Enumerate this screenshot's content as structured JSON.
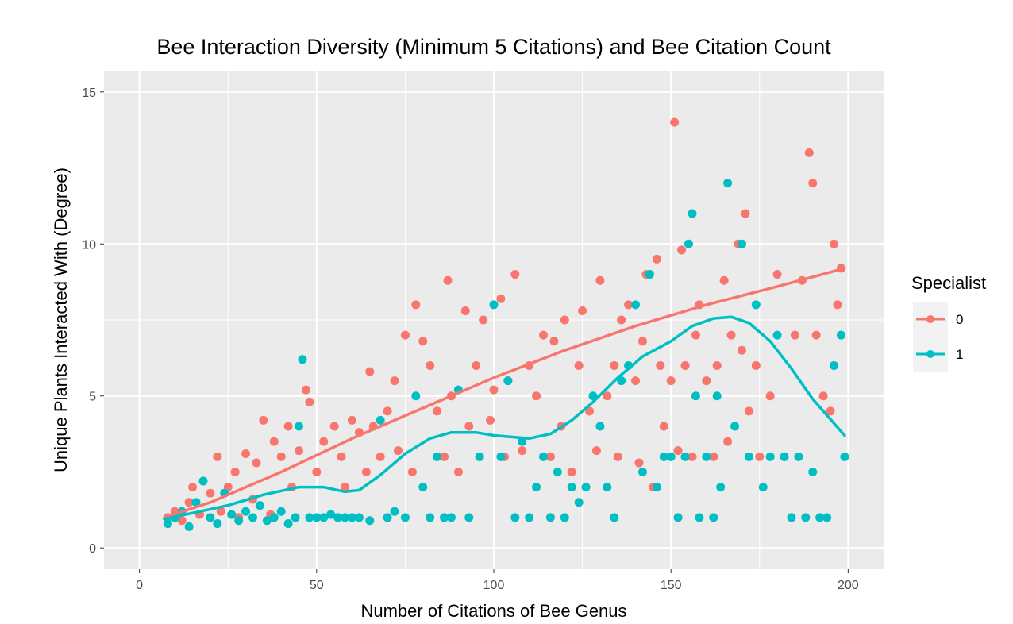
{
  "chart_data": {
    "type": "scatter",
    "title": "Bee Interaction Diversity (Minimum 5 Citations) and Bee Citation Count",
    "xlabel": "Number of Citations of Bee Genus",
    "ylabel": "Unique Plants Interacted With (Degree)",
    "xlim": [
      -10,
      210
    ],
    "ylim": [
      -0.7,
      15.7
    ],
    "x_ticks": [
      0,
      50,
      100,
      150,
      200
    ],
    "y_ticks": [
      0,
      5,
      10,
      15
    ],
    "x_tick_labels": [
      "0",
      "50",
      "100",
      "150",
      "200"
    ],
    "y_tick_labels": [
      "0",
      "5",
      "10",
      "15"
    ],
    "grid": true,
    "legend": {
      "title": "Specialist",
      "position": "right",
      "entries": [
        "0",
        "1"
      ]
    },
    "series": [
      {
        "name": "0",
        "color": "#f8766d",
        "points": [
          [
            8,
            1
          ],
          [
            10,
            1.2
          ],
          [
            12,
            0.9
          ],
          [
            14,
            1.5
          ],
          [
            15,
            2
          ],
          [
            17,
            1.1
          ],
          [
            18,
            2.2
          ],
          [
            20,
            1.8
          ],
          [
            22,
            3
          ],
          [
            23,
            1.2
          ],
          [
            25,
            2
          ],
          [
            27,
            2.5
          ],
          [
            28,
            1
          ],
          [
            30,
            3.1
          ],
          [
            32,
            1.6
          ],
          [
            33,
            2.8
          ],
          [
            35,
            4.2
          ],
          [
            37,
            1.1
          ],
          [
            38,
            3.5
          ],
          [
            40,
            3
          ],
          [
            42,
            4
          ],
          [
            43,
            2
          ],
          [
            45,
            3.2
          ],
          [
            47,
            5.2
          ],
          [
            48,
            4.8
          ],
          [
            50,
            2.5
          ],
          [
            52,
            3.5
          ],
          [
            55,
            4
          ],
          [
            57,
            3
          ],
          [
            58,
            2
          ],
          [
            60,
            4.2
          ],
          [
            62,
            3.8
          ],
          [
            64,
            2.5
          ],
          [
            65,
            5.8
          ],
          [
            66,
            4
          ],
          [
            68,
            3
          ],
          [
            70,
            4.5
          ],
          [
            72,
            5.5
          ],
          [
            73,
            3.2
          ],
          [
            75,
            7
          ],
          [
            77,
            2.5
          ],
          [
            78,
            8
          ],
          [
            80,
            6.8
          ],
          [
            82,
            6
          ],
          [
            84,
            4.5
          ],
          [
            86,
            3
          ],
          [
            87,
            8.8
          ],
          [
            88,
            5
          ],
          [
            90,
            2.5
          ],
          [
            92,
            7.8
          ],
          [
            93,
            4
          ],
          [
            95,
            6
          ],
          [
            96,
            3
          ],
          [
            97,
            7.5
          ],
          [
            99,
            4.2
          ],
          [
            100,
            5.2
          ],
          [
            102,
            8.2
          ],
          [
            103,
            3
          ],
          [
            104,
            5.5
          ],
          [
            106,
            9
          ],
          [
            108,
            3.2
          ],
          [
            110,
            6
          ],
          [
            112,
            5
          ],
          [
            114,
            7
          ],
          [
            116,
            3
          ],
          [
            117,
            6.8
          ],
          [
            119,
            4
          ],
          [
            120,
            7.5
          ],
          [
            122,
            2.5
          ],
          [
            124,
            6
          ],
          [
            125,
            7.8
          ],
          [
            127,
            4.5
          ],
          [
            129,
            3.2
          ],
          [
            130,
            8.8
          ],
          [
            132,
            5
          ],
          [
            134,
            6
          ],
          [
            135,
            3
          ],
          [
            136,
            7.5
          ],
          [
            138,
            8
          ],
          [
            140,
            5.5
          ],
          [
            141,
            2.8
          ],
          [
            142,
            6.8
          ],
          [
            143,
            9
          ],
          [
            145,
            2
          ],
          [
            146,
            9.5
          ],
          [
            147,
            6
          ],
          [
            148,
            4
          ],
          [
            150,
            5.5
          ],
          [
            151,
            14
          ],
          [
            152,
            3.2
          ],
          [
            153,
            9.8
          ],
          [
            154,
            6
          ],
          [
            156,
            3
          ],
          [
            157,
            7
          ],
          [
            158,
            8
          ],
          [
            160,
            5.5
          ],
          [
            162,
            3
          ],
          [
            163,
            6
          ],
          [
            165,
            8.8
          ],
          [
            166,
            3.5
          ],
          [
            167,
            7
          ],
          [
            169,
            10
          ],
          [
            170,
            6.5
          ],
          [
            171,
            11
          ],
          [
            172,
            4.5
          ],
          [
            174,
            6
          ],
          [
            175,
            3
          ],
          [
            178,
            5
          ],
          [
            180,
            9
          ],
          [
            182,
            3
          ],
          [
            185,
            7
          ],
          [
            187,
            8.8
          ],
          [
            189,
            13
          ],
          [
            190,
            12
          ],
          [
            191,
            7
          ],
          [
            193,
            5
          ],
          [
            195,
            4.5
          ],
          [
            196,
            10
          ],
          [
            197,
            8
          ],
          [
            198,
            9.2
          ]
        ]
      },
      {
        "name": "1",
        "color": "#00bfc4",
        "points": [
          [
            8,
            0.8
          ],
          [
            10,
            1
          ],
          [
            12,
            1.2
          ],
          [
            14,
            0.7
          ],
          [
            16,
            1.5
          ],
          [
            18,
            2.2
          ],
          [
            20,
            1
          ],
          [
            22,
            0.8
          ],
          [
            24,
            1.8
          ],
          [
            26,
            1.1
          ],
          [
            28,
            0.9
          ],
          [
            30,
            1.2
          ],
          [
            32,
            1
          ],
          [
            34,
            1.4
          ],
          [
            36,
            0.9
          ],
          [
            38,
            1
          ],
          [
            40,
            1.2
          ],
          [
            42,
            0.8
          ],
          [
            44,
            1
          ],
          [
            45,
            4
          ],
          [
            46,
            6.2
          ],
          [
            48,
            1
          ],
          [
            50,
            1
          ],
          [
            52,
            1
          ],
          [
            54,
            1.1
          ],
          [
            56,
            1
          ],
          [
            58,
            1
          ],
          [
            60,
            1
          ],
          [
            62,
            1
          ],
          [
            65,
            0.9
          ],
          [
            68,
            4.2
          ],
          [
            70,
            1
          ],
          [
            72,
            1.2
          ],
          [
            75,
            1
          ],
          [
            78,
            5
          ],
          [
            80,
            2
          ],
          [
            82,
            1
          ],
          [
            84,
            3
          ],
          [
            86,
            1
          ],
          [
            88,
            1
          ],
          [
            90,
            5.2
          ],
          [
            93,
            1
          ],
          [
            96,
            3
          ],
          [
            100,
            8
          ],
          [
            102,
            3
          ],
          [
            104,
            5.5
          ],
          [
            106,
            1
          ],
          [
            108,
            3.5
          ],
          [
            110,
            1
          ],
          [
            112,
            2
          ],
          [
            114,
            3
          ],
          [
            116,
            1
          ],
          [
            118,
            2.5
          ],
          [
            120,
            1
          ],
          [
            122,
            2
          ],
          [
            124,
            1.5
          ],
          [
            126,
            2
          ],
          [
            128,
            5
          ],
          [
            130,
            4
          ],
          [
            132,
            2
          ],
          [
            134,
            1
          ],
          [
            136,
            5.5
          ],
          [
            138,
            6
          ],
          [
            140,
            8
          ],
          [
            142,
            2.5
          ],
          [
            144,
            9
          ],
          [
            146,
            2
          ],
          [
            148,
            3
          ],
          [
            150,
            3
          ],
          [
            152,
            1
          ],
          [
            154,
            3
          ],
          [
            155,
            10
          ],
          [
            156,
            11
          ],
          [
            157,
            5
          ],
          [
            158,
            1
          ],
          [
            160,
            3
          ],
          [
            162,
            1
          ],
          [
            163,
            5
          ],
          [
            164,
            2
          ],
          [
            166,
            12
          ],
          [
            168,
            4
          ],
          [
            170,
            10
          ],
          [
            172,
            3
          ],
          [
            174,
            8
          ],
          [
            176,
            2
          ],
          [
            178,
            3
          ],
          [
            180,
            7
          ],
          [
            182,
            3
          ],
          [
            184,
            1
          ],
          [
            186,
            3
          ],
          [
            188,
            1
          ],
          [
            190,
            2.5
          ],
          [
            192,
            1
          ],
          [
            194,
            1
          ],
          [
            196,
            6
          ],
          [
            198,
            7
          ],
          [
            199,
            3
          ]
        ]
      }
    ],
    "trend_lines": [
      {
        "series": "0",
        "color": "#f8766d",
        "points": [
          [
            7,
            1
          ],
          [
            20,
            1.5
          ],
          [
            40,
            2.5
          ],
          [
            60,
            3.6
          ],
          [
            80,
            4.6
          ],
          [
            100,
            5.6
          ],
          [
            120,
            6.5
          ],
          [
            140,
            7.3
          ],
          [
            160,
            8.0
          ],
          [
            180,
            8.6
          ],
          [
            199,
            9.2
          ]
        ]
      },
      {
        "series": "1",
        "color": "#00bfc4",
        "points": [
          [
            7,
            0.95
          ],
          [
            15,
            1.15
          ],
          [
            25,
            1.4
          ],
          [
            35,
            1.75
          ],
          [
            45,
            2.0
          ],
          [
            52,
            2.0
          ],
          [
            58,
            1.85
          ],
          [
            62,
            1.9
          ],
          [
            68,
            2.4
          ],
          [
            75,
            3.1
          ],
          [
            82,
            3.6
          ],
          [
            88,
            3.8
          ],
          [
            95,
            3.8
          ],
          [
            100,
            3.7
          ],
          [
            105,
            3.65
          ],
          [
            110,
            3.6
          ],
          [
            116,
            3.75
          ],
          [
            122,
            4.2
          ],
          [
            128,
            4.8
          ],
          [
            135,
            5.6
          ],
          [
            142,
            6.3
          ],
          [
            150,
            6.8
          ],
          [
            156,
            7.3
          ],
          [
            162,
            7.55
          ],
          [
            167,
            7.6
          ],
          [
            172,
            7.4
          ],
          [
            178,
            6.8
          ],
          [
            184,
            5.9
          ],
          [
            190,
            4.9
          ],
          [
            199,
            3.7
          ]
        ]
      }
    ]
  }
}
